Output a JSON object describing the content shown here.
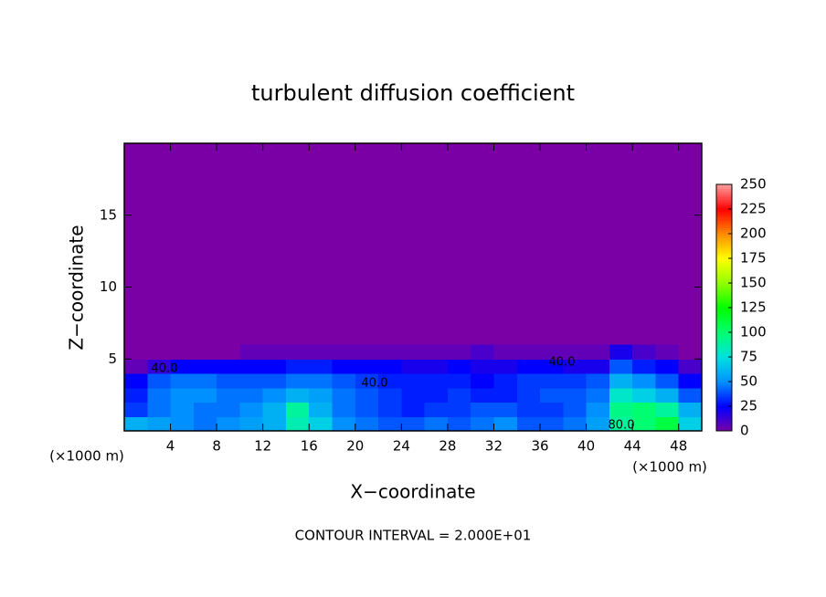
{
  "chart_data": {
    "type": "heatmap",
    "title": "turbulent diffusion coefficient",
    "x_label": "X−coordinate",
    "y_label": "Z−coordinate",
    "unit_label": "(×1000 m)",
    "footnote": "CONTOUR INTERVAL = 2.000E+01",
    "contour_labels": [
      "40.0",
      "40.0",
      "40.0",
      "80.0"
    ],
    "x": [
      1,
      3,
      5,
      7,
      9,
      11,
      13,
      15,
      17,
      19,
      21,
      23,
      25,
      27,
      29,
      31,
      33,
      35,
      37,
      39,
      41,
      43,
      45,
      47,
      49
    ],
    "y": [
      0.5,
      1.5,
      2.5,
      3.5,
      4.5,
      5.5
    ],
    "z": [
      [
        60,
        55,
        50,
        45,
        50,
        55,
        60,
        85,
        70,
        50,
        45,
        40,
        40,
        45,
        40,
        45,
        50,
        40,
        40,
        45,
        55,
        90,
        100,
        110,
        70
      ],
      [
        35,
        45,
        50,
        45,
        45,
        50,
        60,
        90,
        60,
        45,
        40,
        35,
        30,
        35,
        35,
        40,
        40,
        35,
        35,
        40,
        50,
        95,
        100,
        90,
        60
      ],
      [
        30,
        45,
        50,
        50,
        45,
        45,
        50,
        60,
        55,
        45,
        40,
        35,
        30,
        30,
        35,
        30,
        30,
        35,
        40,
        40,
        45,
        80,
        70,
        60,
        40
      ],
      [
        25,
        40,
        45,
        45,
        40,
        40,
        40,
        45,
        45,
        40,
        35,
        30,
        30,
        30,
        30,
        25,
        30,
        35,
        35,
        35,
        40,
        60,
        50,
        40,
        25
      ],
      [
        5,
        15,
        25,
        25,
        25,
        25,
        25,
        30,
        30,
        25,
        25,
        25,
        20,
        20,
        25,
        20,
        20,
        25,
        25,
        20,
        20,
        40,
        30,
        25,
        10
      ],
      [
        0,
        0,
        0,
        0,
        0,
        5,
        5,
        5,
        5,
        5,
        5,
        5,
        5,
        5,
        5,
        10,
        5,
        5,
        5,
        5,
        5,
        20,
        10,
        5,
        0
      ]
    ],
    "xlim": [
      0,
      50
    ],
    "ylim": [
      0,
      20
    ],
    "xticks": [
      4,
      8,
      12,
      16,
      20,
      24,
      28,
      32,
      36,
      40,
      44,
      48
    ],
    "yticks": [
      5,
      10,
      15
    ],
    "zlim": [
      0,
      250
    ],
    "zticks": [
      0,
      25,
      50,
      75,
      100,
      125,
      150,
      175,
      200,
      225,
      250
    ],
    "colormap": [
      "#7a00a6",
      "#0000ff",
      "#0090ff",
      "#00e0e0",
      "#00ff70",
      "#00ff00",
      "#90ff00",
      "#ffff00",
      "#ff8c00",
      "#ff0000",
      "#ff9a9a"
    ]
  }
}
